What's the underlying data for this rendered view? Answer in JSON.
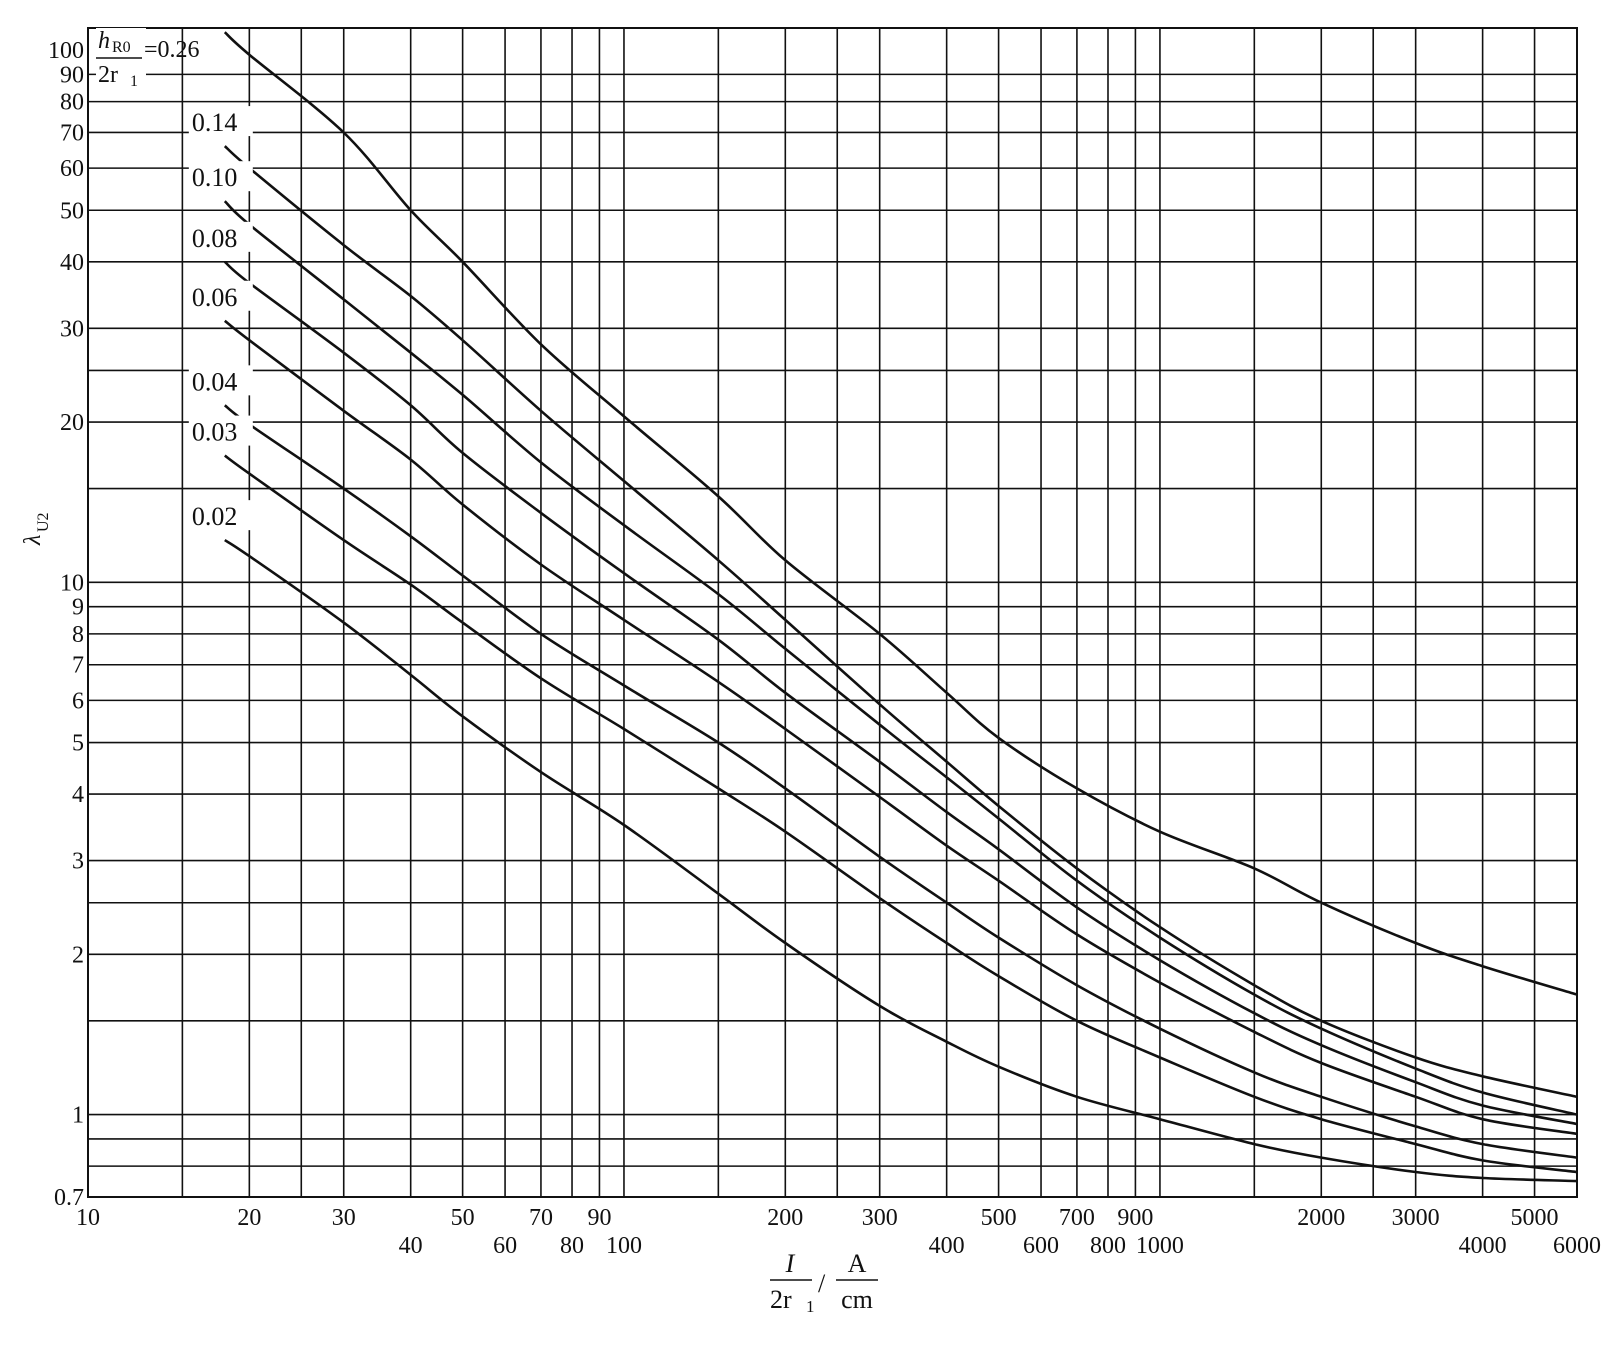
{
  "chart_data": {
    "type": "line",
    "x_scale": "log",
    "y_scale": "log",
    "xlim": [
      10,
      6000
    ],
    "ylim": [
      0.7,
      110
    ],
    "grid": true,
    "ylabel": "λU2",
    "ylabel_main": "λ",
    "ylabel_sub": "U2",
    "xlabel": "I/2r1 / A/cm",
    "xlabel_parts": {
      "num1": "I",
      "den1": "2r",
      "den1_sub": "1",
      "slash": "/",
      "num2": "A",
      "den2": "cm"
    },
    "x_ticks_upper": [
      "10",
      "20",
      "30",
      "50",
      "70",
      "90",
      "200",
      "300",
      "500",
      "700",
      "900",
      "2000",
      "3000",
      "5000"
    ],
    "x_ticks_lower": [
      "40",
      "60",
      "80",
      "100",
      "400",
      "600",
      "800",
      "1000",
      "4000",
      "6000"
    ],
    "y_ticks": [
      "0.7",
      "1",
      "2",
      "3",
      "4",
      "5",
      "6",
      "7",
      "8",
      "9",
      "10",
      "20",
      "30",
      "40",
      "50",
      "60",
      "70",
      "80",
      "90",
      "100"
    ],
    "legend_header": {
      "num": "h",
      "num_sub": "R0",
      "den": "2r",
      "den_sub": "1",
      "eq": "=0.26"
    },
    "series": [
      {
        "name": "0.26",
        "points": [
          [
            18,
            108
          ],
          [
            20,
            98
          ],
          [
            30,
            70
          ],
          [
            40,
            50
          ],
          [
            50,
            40
          ],
          [
            70,
            28
          ],
          [
            100,
            20.5
          ],
          [
            150,
            14.5
          ],
          [
            200,
            11
          ],
          [
            300,
            8
          ],
          [
            400,
            6.2
          ],
          [
            500,
            5.1
          ],
          [
            700,
            4.1
          ],
          [
            1000,
            3.4
          ],
          [
            1500,
            2.9
          ],
          [
            2000,
            2.5
          ],
          [
            3000,
            2.1
          ],
          [
            4000,
            1.9
          ],
          [
            6000,
            1.68
          ]
        ]
      },
      {
        "name": "0.14",
        "points": [
          [
            18,
            66
          ],
          [
            20,
            60
          ],
          [
            30,
            43
          ],
          [
            40,
            34.5
          ],
          [
            50,
            28.5
          ],
          [
            70,
            21
          ],
          [
            100,
            15.5
          ],
          [
            150,
            11
          ],
          [
            200,
            8.5
          ],
          [
            300,
            5.9
          ],
          [
            400,
            4.6
          ],
          [
            500,
            3.8
          ],
          [
            700,
            2.9
          ],
          [
            1000,
            2.25
          ],
          [
            1500,
            1.75
          ],
          [
            2000,
            1.5
          ],
          [
            3000,
            1.28
          ],
          [
            4000,
            1.18
          ],
          [
            6000,
            1.08
          ]
        ]
      },
      {
        "name": "0.10",
        "points": [
          [
            18,
            52
          ],
          [
            20,
            47
          ],
          [
            30,
            34
          ],
          [
            40,
            27
          ],
          [
            50,
            22.5
          ],
          [
            70,
            16.8
          ],
          [
            100,
            12.8
          ],
          [
            150,
            9.5
          ],
          [
            200,
            7.5
          ],
          [
            300,
            5.4
          ],
          [
            400,
            4.3
          ],
          [
            500,
            3.6
          ],
          [
            700,
            2.75
          ],
          [
            1000,
            2.15
          ],
          [
            1500,
            1.68
          ],
          [
            2000,
            1.45
          ],
          [
            3000,
            1.22
          ],
          [
            4000,
            1.1
          ],
          [
            6000,
            1.0
          ]
        ]
      },
      {
        "name": "0.08",
        "points": [
          [
            18,
            40
          ],
          [
            20,
            36.5
          ],
          [
            30,
            27
          ],
          [
            40,
            21.5
          ],
          [
            50,
            17.5
          ],
          [
            70,
            13.5
          ],
          [
            100,
            10.4
          ],
          [
            150,
            7.8
          ],
          [
            200,
            6.2
          ],
          [
            300,
            4.6
          ],
          [
            400,
            3.7
          ],
          [
            500,
            3.15
          ],
          [
            700,
            2.45
          ],
          [
            1000,
            1.95
          ],
          [
            1500,
            1.55
          ],
          [
            2000,
            1.35
          ],
          [
            3000,
            1.15
          ],
          [
            4000,
            1.04
          ],
          [
            6000,
            0.96
          ]
        ]
      },
      {
        "name": "0.06",
        "points": [
          [
            18,
            31
          ],
          [
            20,
            28.5
          ],
          [
            30,
            21
          ],
          [
            40,
            17
          ],
          [
            50,
            14
          ],
          [
            70,
            10.8
          ],
          [
            100,
            8.5
          ],
          [
            150,
            6.5
          ],
          [
            200,
            5.3
          ],
          [
            300,
            3.95
          ],
          [
            400,
            3.2
          ],
          [
            500,
            2.75
          ],
          [
            700,
            2.18
          ],
          [
            1000,
            1.77
          ],
          [
            1500,
            1.43
          ],
          [
            2000,
            1.25
          ],
          [
            3000,
            1.08
          ],
          [
            4000,
            0.98
          ],
          [
            6000,
            0.92
          ]
        ]
      },
      {
        "name": "0.04",
        "points": [
          [
            18,
            21.5
          ],
          [
            20,
            19.8
          ],
          [
            30,
            15
          ],
          [
            40,
            12.2
          ],
          [
            50,
            10.3
          ],
          [
            70,
            8
          ],
          [
            100,
            6.4
          ],
          [
            150,
            5
          ],
          [
            200,
            4.1
          ],
          [
            300,
            3.05
          ],
          [
            400,
            2.5
          ],
          [
            500,
            2.15
          ],
          [
            700,
            1.75
          ],
          [
            1000,
            1.45
          ],
          [
            1500,
            1.2
          ],
          [
            2000,
            1.08
          ],
          [
            3000,
            0.95
          ],
          [
            4000,
            0.88
          ],
          [
            6000,
            0.83
          ]
        ]
      },
      {
        "name": "0.03",
        "points": [
          [
            18,
            17.3
          ],
          [
            20,
            16
          ],
          [
            30,
            12
          ],
          [
            40,
            9.9
          ],
          [
            50,
            8.4
          ],
          [
            70,
            6.6
          ],
          [
            100,
            5.3
          ],
          [
            150,
            4.1
          ],
          [
            200,
            3.4
          ],
          [
            300,
            2.55
          ],
          [
            400,
            2.1
          ],
          [
            500,
            1.82
          ],
          [
            700,
            1.5
          ],
          [
            1000,
            1.28
          ],
          [
            1500,
            1.08
          ],
          [
            2000,
            0.98
          ],
          [
            3000,
            0.88
          ],
          [
            4000,
            0.82
          ],
          [
            6000,
            0.78
          ]
        ]
      },
      {
        "name": "0.02",
        "points": [
          [
            18,
            12
          ],
          [
            20,
            11.2
          ],
          [
            30,
            8.4
          ],
          [
            40,
            6.7
          ],
          [
            50,
            5.6
          ],
          [
            70,
            4.4
          ],
          [
            100,
            3.5
          ],
          [
            150,
            2.6
          ],
          [
            200,
            2.1
          ],
          [
            300,
            1.6
          ],
          [
            400,
            1.37
          ],
          [
            500,
            1.23
          ],
          [
            700,
            1.08
          ],
          [
            1000,
            0.98
          ],
          [
            1500,
            0.88
          ],
          [
            2000,
            0.83
          ],
          [
            3000,
            0.78
          ],
          [
            4000,
            0.76
          ],
          [
            6000,
            0.75
          ]
        ]
      }
    ]
  }
}
